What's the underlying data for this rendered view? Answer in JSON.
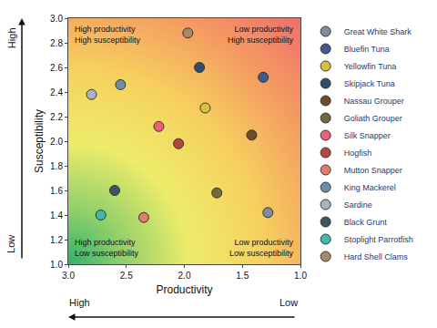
{
  "chart_data": {
    "type": "scatter",
    "x_label": "Productivity",
    "y_label": "Susceptibility",
    "xlim": [
      3.0,
      1.0
    ],
    "ylim": [
      1.0,
      3.0
    ],
    "xticks": [
      {
        "value": 3.0,
        "label": "3.0"
      },
      {
        "value": 2.5,
        "label": "2.5"
      },
      {
        "value": 2.0,
        "label": "2.0"
      },
      {
        "value": 1.5,
        "label": "1.5"
      },
      {
        "value": 1.0,
        "label": "1.0"
      }
    ],
    "yticks": [
      {
        "value": 1.0,
        "label": "1.0"
      },
      {
        "value": 1.2,
        "label": "1.2"
      },
      {
        "value": 1.4,
        "label": "1.4"
      },
      {
        "value": 1.6,
        "label": "1.6"
      },
      {
        "value": 1.8,
        "label": "1.8"
      },
      {
        "value": 2.0,
        "label": "2.0"
      },
      {
        "value": 2.2,
        "label": "2.2"
      },
      {
        "value": 2.4,
        "label": "2.4"
      },
      {
        "value": 2.6,
        "label": "2.6"
      },
      {
        "value": 2.8,
        "label": "2.8"
      },
      {
        "value": 3.0,
        "label": "3.0"
      }
    ],
    "grid": false,
    "legend": "right",
    "marker": "circle",
    "axis_end_labels": {
      "x": [
        "High",
        "Low"
      ],
      "y": [
        "Low",
        "High"
      ]
    },
    "quadrant_labels": {
      "top_left": [
        "High productivity",
        "High susceptibility"
      ],
      "top_right": [
        "Low productivity",
        "High susceptibility"
      ],
      "bottom_left": [
        "High productivity",
        "Low susceptibility"
      ],
      "bottom_right": [
        "Low productivity",
        "Low susceptibility"
      ]
    },
    "series": [
      {
        "name": "Great White Shark",
        "color": "#7d8ea0",
        "x": [
          1.28
        ],
        "values": [
          1.42
        ]
      },
      {
        "name": "Bluefin Tuna",
        "color": "#3d5a8a",
        "x": [
          1.32
        ],
        "values": [
          2.52
        ]
      },
      {
        "name": "Yellowfin Tuna",
        "color": "#d9c23a",
        "x": [
          1.82
        ],
        "values": [
          2.27
        ]
      },
      {
        "name": "Skipjack Tuna",
        "color": "#2f4e6e",
        "x": [
          1.87
        ],
        "values": [
          2.6
        ]
      },
      {
        "name": "Nassau Grouper",
        "color": "#6b4a2e",
        "x": [
          1.42
        ],
        "values": [
          2.05
        ]
      },
      {
        "name": "Goliath Grouper",
        "color": "#6f6a3a",
        "x": [
          1.72
        ],
        "values": [
          1.58
        ]
      },
      {
        "name": "Silk Snapper",
        "color": "#e8607a",
        "x": [
          2.22
        ],
        "values": [
          2.12
        ]
      },
      {
        "name": "Hogfish",
        "color": "#b5453f",
        "x": [
          2.05
        ],
        "values": [
          1.98
        ]
      },
      {
        "name": "Mutton Snapper",
        "color": "#e07c6a",
        "x": [
          2.35
        ],
        "values": [
          1.38
        ]
      },
      {
        "name": "King Mackerel",
        "color": "#6f8ca8",
        "x": [
          2.55
        ],
        "values": [
          2.46
        ]
      },
      {
        "name": "Sardine",
        "color": "#a7b3c0",
        "x": [
          2.8
        ],
        "values": [
          2.38
        ]
      },
      {
        "name": "Black Grunt",
        "color": "#3c5560",
        "x": [
          2.6
        ],
        "values": [
          1.6
        ]
      },
      {
        "name": "Stoplight Parrotfish",
        "color": "#3fb8b0",
        "x": [
          2.72
        ],
        "values": [
          1.4
        ]
      },
      {
        "name": "Hard Shell Clams",
        "color": "#a58a6a",
        "x": [
          1.97
        ],
        "values": [
          2.88
        ]
      }
    ]
  }
}
